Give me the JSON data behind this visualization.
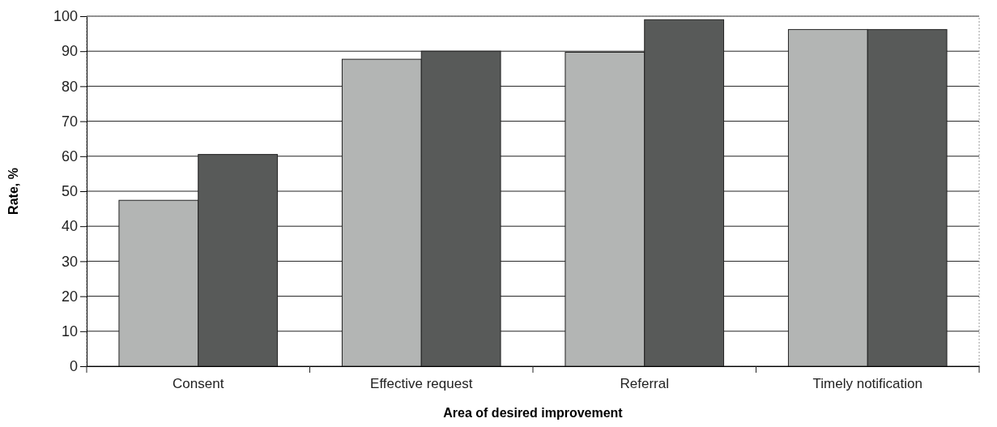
{
  "chart_data": {
    "type": "bar",
    "xlabel": "Area of desired improvement",
    "ylabel": "Rate, %",
    "categories": [
      "Consent",
      "Effective request",
      "Referral",
      "Timely notification"
    ],
    "series": [
      {
        "color": "#b3b5b4",
        "values": [
          47.4,
          87.7,
          89.7,
          96.2
        ]
      },
      {
        "color": "#585a59",
        "values": [
          60.5,
          90,
          99,
          96.2
        ]
      }
    ],
    "ylim": [
      0,
      100
    ],
    "yticks": [
      0,
      10,
      20,
      30,
      40,
      50,
      60,
      70,
      80,
      90,
      100
    ],
    "grid": "y"
  }
}
